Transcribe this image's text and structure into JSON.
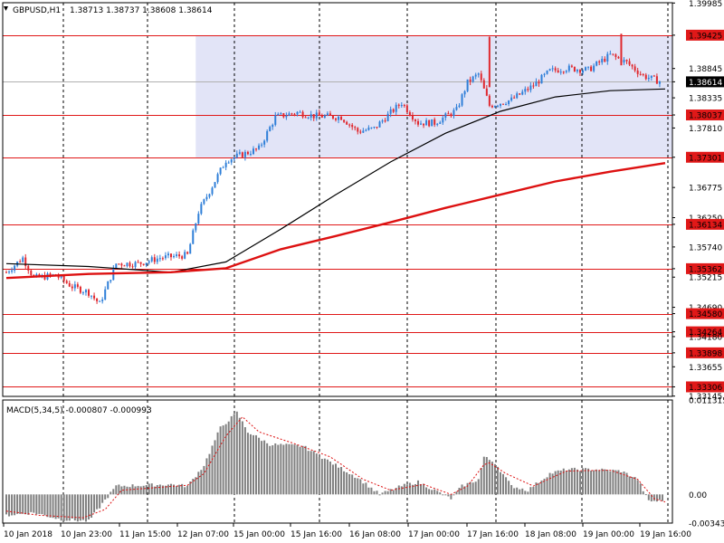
{
  "header": {
    "symbol": "GBPUSD,H1",
    "quotes": "1.38713 1.38737 1.38608 1.38614"
  },
  "macd": {
    "label": "MACD(5,34,5) -0.000807 -0.000993",
    "axis_labels": [
      "0.011315",
      "0.00",
      "-0.003438"
    ]
  },
  "colors": {
    "bull": "#2f7fd8",
    "bear": "#e0282e",
    "level_line": "#e01818",
    "ma_fast": "#000000",
    "ma_slow": "#dd1111",
    "zone_fill": "#e2e4f7",
    "histogram": "#808080",
    "signal": "#dd1111",
    "grid": "#000000"
  },
  "chart_data": [
    {
      "type": "candlestick",
      "title": "GBPUSD,H1",
      "ylim": [
        1.3314,
        1.3999
      ],
      "y_ticks": [
        "1.39985",
        "1.39425",
        "1.38845",
        "1.38614",
        "1.38335",
        "1.38037",
        "1.37810",
        "1.37301",
        "1.36775",
        "1.36250",
        "1.36134",
        "1.35740",
        "1.35362",
        "1.35215",
        "1.34690",
        "1.34580",
        "1.34264",
        "1.34180",
        "1.33898",
        "1.33655",
        "1.33306",
        "1.33145"
      ],
      "x_tick_labels": [
        "10 Jan 2018",
        "10 Jan 23:00",
        "11 Jan 15:00",
        "12 Jan 07:00",
        "15 Jan 00:00",
        "15 Jan 16:00",
        "16 Jan 08:00",
        "17 Jan 00:00",
        "17 Jan 16:00",
        "18 Jan 08:00",
        "19 Jan 00:00",
        "19 Jan 16:00"
      ],
      "current_price": "1.38614",
      "levels": [
        "1.39425",
        "1.38037",
        "1.37301",
        "1.36134",
        "1.35362",
        "1.34580",
        "1.34264",
        "1.33898",
        "1.33306"
      ],
      "zone": {
        "from": 1.37301,
        "to": 1.39425
      },
      "closes_anchor": [
        [
          0,
          1.353
        ],
        [
          6,
          1.3555
        ],
        [
          10,
          1.352
        ],
        [
          18,
          1.3525
        ],
        [
          24,
          1.3505
        ],
        [
          30,
          1.3495
        ],
        [
          34,
          1.3475
        ],
        [
          40,
          1.3545
        ],
        [
          48,
          1.3545
        ],
        [
          56,
          1.3555
        ],
        [
          66,
          1.356
        ],
        [
          70,
          1.3635
        ],
        [
          75,
          1.368
        ],
        [
          80,
          1.3725
        ],
        [
          86,
          1.3735
        ],
        [
          92,
          1.3745
        ],
        [
          98,
          1.38
        ],
        [
          106,
          1.3808
        ],
        [
          112,
          1.3802
        ],
        [
          122,
          1.38
        ],
        [
          128,
          1.3775
        ],
        [
          134,
          1.378
        ],
        [
          140,
          1.3808
        ],
        [
          144,
          1.3825
        ],
        [
          150,
          1.379
        ],
        [
          156,
          1.379
        ],
        [
          164,
          1.3812
        ],
        [
          168,
          1.386
        ],
        [
          172,
          1.3875
        ],
        [
          176,
          1.382
        ],
        [
          184,
          1.383
        ],
        [
          192,
          1.3855
        ],
        [
          198,
          1.388
        ],
        [
          204,
          1.3885
        ],
        [
          212,
          1.3882
        ],
        [
          220,
          1.3908
        ],
        [
          226,
          1.3895
        ],
        [
          232,
          1.3872
        ],
        [
          238,
          1.3862
        ]
      ],
      "series": [
        {
          "name": "",
          "type": "ma",
          "points": [
            [
              0,
              1.3545
            ],
            [
              30,
              1.354
            ],
            [
              60,
              1.353
            ],
            [
              80,
              1.3548
            ],
            [
              100,
              1.3605
            ],
            [
              120,
              1.3665
            ],
            [
              140,
              1.3722
            ],
            [
              160,
              1.3772
            ],
            [
              180,
              1.381
            ],
            [
              200,
              1.3835
            ],
            [
              220,
              1.3846
            ],
            [
              240,
              1.3849
            ]
          ]
        },
        {
          "name": "",
          "type": "ma",
          "points": [
            [
              0,
              1.352
            ],
            [
              30,
              1.3527
            ],
            [
              60,
              1.353
            ],
            [
              80,
              1.3537
            ],
            [
              100,
              1.357
            ],
            [
              120,
              1.3593
            ],
            [
              140,
              1.3617
            ],
            [
              160,
              1.3642
            ],
            [
              180,
              1.3665
            ],
            [
              200,
              1.3688
            ],
            [
              220,
              1.3705
            ],
            [
              240,
              1.372
            ]
          ]
        }
      ]
    },
    {
      "type": "bar",
      "title": "MACD(5,34,5)",
      "ylim": [
        -0.003438,
        0.011315
      ],
      "macd_anchor": [
        [
          0,
          -0.0025
        ],
        [
          10,
          -0.0022
        ],
        [
          20,
          -0.003
        ],
        [
          30,
          -0.0032
        ],
        [
          40,
          0.001
        ],
        [
          60,
          0.0012
        ],
        [
          66,
          0.001
        ],
        [
          72,
          0.0035
        ],
        [
          78,
          0.008
        ],
        [
          84,
          0.0098
        ],
        [
          88,
          0.0075
        ],
        [
          96,
          0.006
        ],
        [
          108,
          0.0058
        ],
        [
          120,
          0.0035
        ],
        [
          128,
          0.002
        ],
        [
          136,
          0.0
        ],
        [
          144,
          0.001
        ],
        [
          150,
          0.0015
        ],
        [
          156,
          0.0005
        ],
        [
          162,
          -0.0005
        ],
        [
          166,
          0.001
        ],
        [
          172,
          0.0018
        ],
        [
          174,
          0.0045
        ],
        [
          178,
          0.0038
        ],
        [
          184,
          0.001
        ],
        [
          190,
          0.0005
        ],
        [
          198,
          0.0025
        ],
        [
          204,
          0.003
        ],
        [
          214,
          0.003
        ],
        [
          224,
          0.0028
        ],
        [
          230,
          0.0018
        ],
        [
          234,
          -0.0008
        ],
        [
          238,
          -0.0008
        ]
      ],
      "signal_anchor": [
        [
          0,
          -0.002
        ],
        [
          12,
          -0.0025
        ],
        [
          28,
          -0.0028
        ],
        [
          36,
          -0.0018
        ],
        [
          42,
          0.0005
        ],
        [
          66,
          0.0011
        ],
        [
          72,
          0.0025
        ],
        [
          80,
          0.007
        ],
        [
          86,
          0.0093
        ],
        [
          92,
          0.0075
        ],
        [
          104,
          0.0062
        ],
        [
          118,
          0.0045
        ],
        [
          130,
          0.0018
        ],
        [
          140,
          0.0005
        ],
        [
          152,
          0.0012
        ],
        [
          162,
          0.0
        ],
        [
          168,
          0.001
        ],
        [
          175,
          0.004
        ],
        [
          182,
          0.0025
        ],
        [
          192,
          0.001
        ],
        [
          204,
          0.0028
        ],
        [
          220,
          0.0029
        ],
        [
          230,
          0.0018
        ],
        [
          236,
          -0.0005
        ],
        [
          240,
          -0.0009
        ]
      ]
    }
  ]
}
